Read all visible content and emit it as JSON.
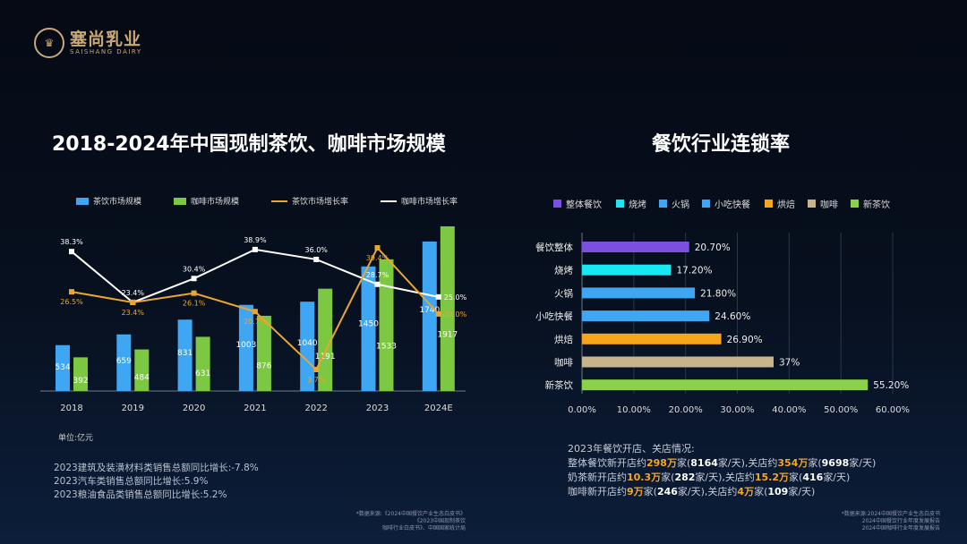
{
  "logo": {
    "cn": "塞尚乳业",
    "en": "SAISHANG DAIRY"
  },
  "left": {
    "title": "2018-2024年中国现制茶饮、咖啡市场规模",
    "unit": "单位:亿元",
    "notes": [
      "2023建筑及装潢材料类销售总额同比增长:-7.8%",
      "2023汽车类销售总额同比增长:5.9%",
      "2023粮油食品类销售总额同比增长:5.2%"
    ],
    "source": [
      "*数据来源:《2024中国餐饮产业生态白皮书》",
      "《2023中国现制茶饮",
      "咖啡行业白皮书》、中国国家统计局"
    ]
  },
  "right": {
    "title": "餐饮行业连锁率",
    "stats_title": "2023年餐饮开店、关店情况:",
    "stats": [
      {
        "name": "整体餐饮",
        "open": "298万",
        "open_day": "8164",
        "close": "354万",
        "close_day": "9698"
      },
      {
        "name": "奶茶",
        "open": "10.3万",
        "open_day": "282",
        "close": "15.2万",
        "close_day": "416"
      },
      {
        "name": "咖啡",
        "open": "9万",
        "open_day": "246",
        "close": "4万",
        "close_day": "109"
      }
    ],
    "stats_words": {
      "open": "新开店约",
      "unit": "家",
      "perday": "家/天",
      "close": "关店约"
    },
    "source": [
      "*数据来源:2024中国餐饮产业生态白皮书",
      "2024中国餐饮行业年度发展报告",
      "2024中国咖啡行业年度发展报告"
    ]
  },
  "chart_data": [
    {
      "type": "bar",
      "categories": [
        "2018",
        "2019",
        "2020",
        "2021",
        "2022",
        "2023",
        "2024E"
      ],
      "series": [
        {
          "name": "茶饮市场规模",
          "type": "bar",
          "color": "#3ea6f2",
          "values": [
            534,
            659,
            831,
            1003,
            1040,
            1450,
            1740
          ]
        },
        {
          "name": "咖啡市场规模",
          "type": "bar",
          "color": "#7cc843",
          "values": [
            392,
            484,
            631,
            876,
            1191,
            1533,
            1917
          ]
        },
        {
          "name": "茶饮市场增长率",
          "type": "line",
          "color": "#e9a630",
          "values": [
            26.5,
            23.4,
            26.1,
            20.7,
            3.7,
            39.4,
            20.0
          ],
          "labels": [
            "26.5%",
            "23.4%",
            "26.1%",
            "20.7%",
            "3.7%",
            "39.4%",
            "20.0%"
          ]
        },
        {
          "name": "咖啡市场增长率",
          "type": "line",
          "color": "#ffffff",
          "values": [
            38.3,
            23.4,
            30.4,
            38.9,
            36.0,
            28.7,
            25.0
          ],
          "labels": [
            "38.3%",
            "23.4%",
            "30.4%",
            "38.9%",
            "36.0%",
            "28.7%",
            "25.0%"
          ]
        }
      ],
      "legend": "top"
    },
    {
      "type": "bar",
      "orientation": "horizontal",
      "categories": [
        "餐饮整体",
        "烧烤",
        "火锅",
        "小吃快餐",
        "烘焙",
        "咖啡",
        "新茶饮"
      ],
      "legend_labels": [
        "整体餐饮",
        "烧烤",
        "火锅",
        "小吃快餐",
        "烘焙",
        "咖啡",
        "新茶饮"
      ],
      "values": [
        20.7,
        17.2,
        21.8,
        24.6,
        26.9,
        37,
        55.2
      ],
      "labels": [
        "20.70%",
        "17.20%",
        "21.80%",
        "24.60%",
        "26.90%",
        "37%",
        "55.20%"
      ],
      "colors": [
        "#7b4fe0",
        "#19e8f2",
        "#3ea6f2",
        "#3ea6f2",
        "#f7a61c",
        "#c8b48a",
        "#8bd14a"
      ],
      "xticks": [
        "0.00%",
        "10.00%",
        "20.00%",
        "30.00%",
        "40.00%",
        "50.00%",
        "60.00%"
      ],
      "xlim": [
        0,
        60
      ],
      "grid": true,
      "legend": "top"
    }
  ]
}
